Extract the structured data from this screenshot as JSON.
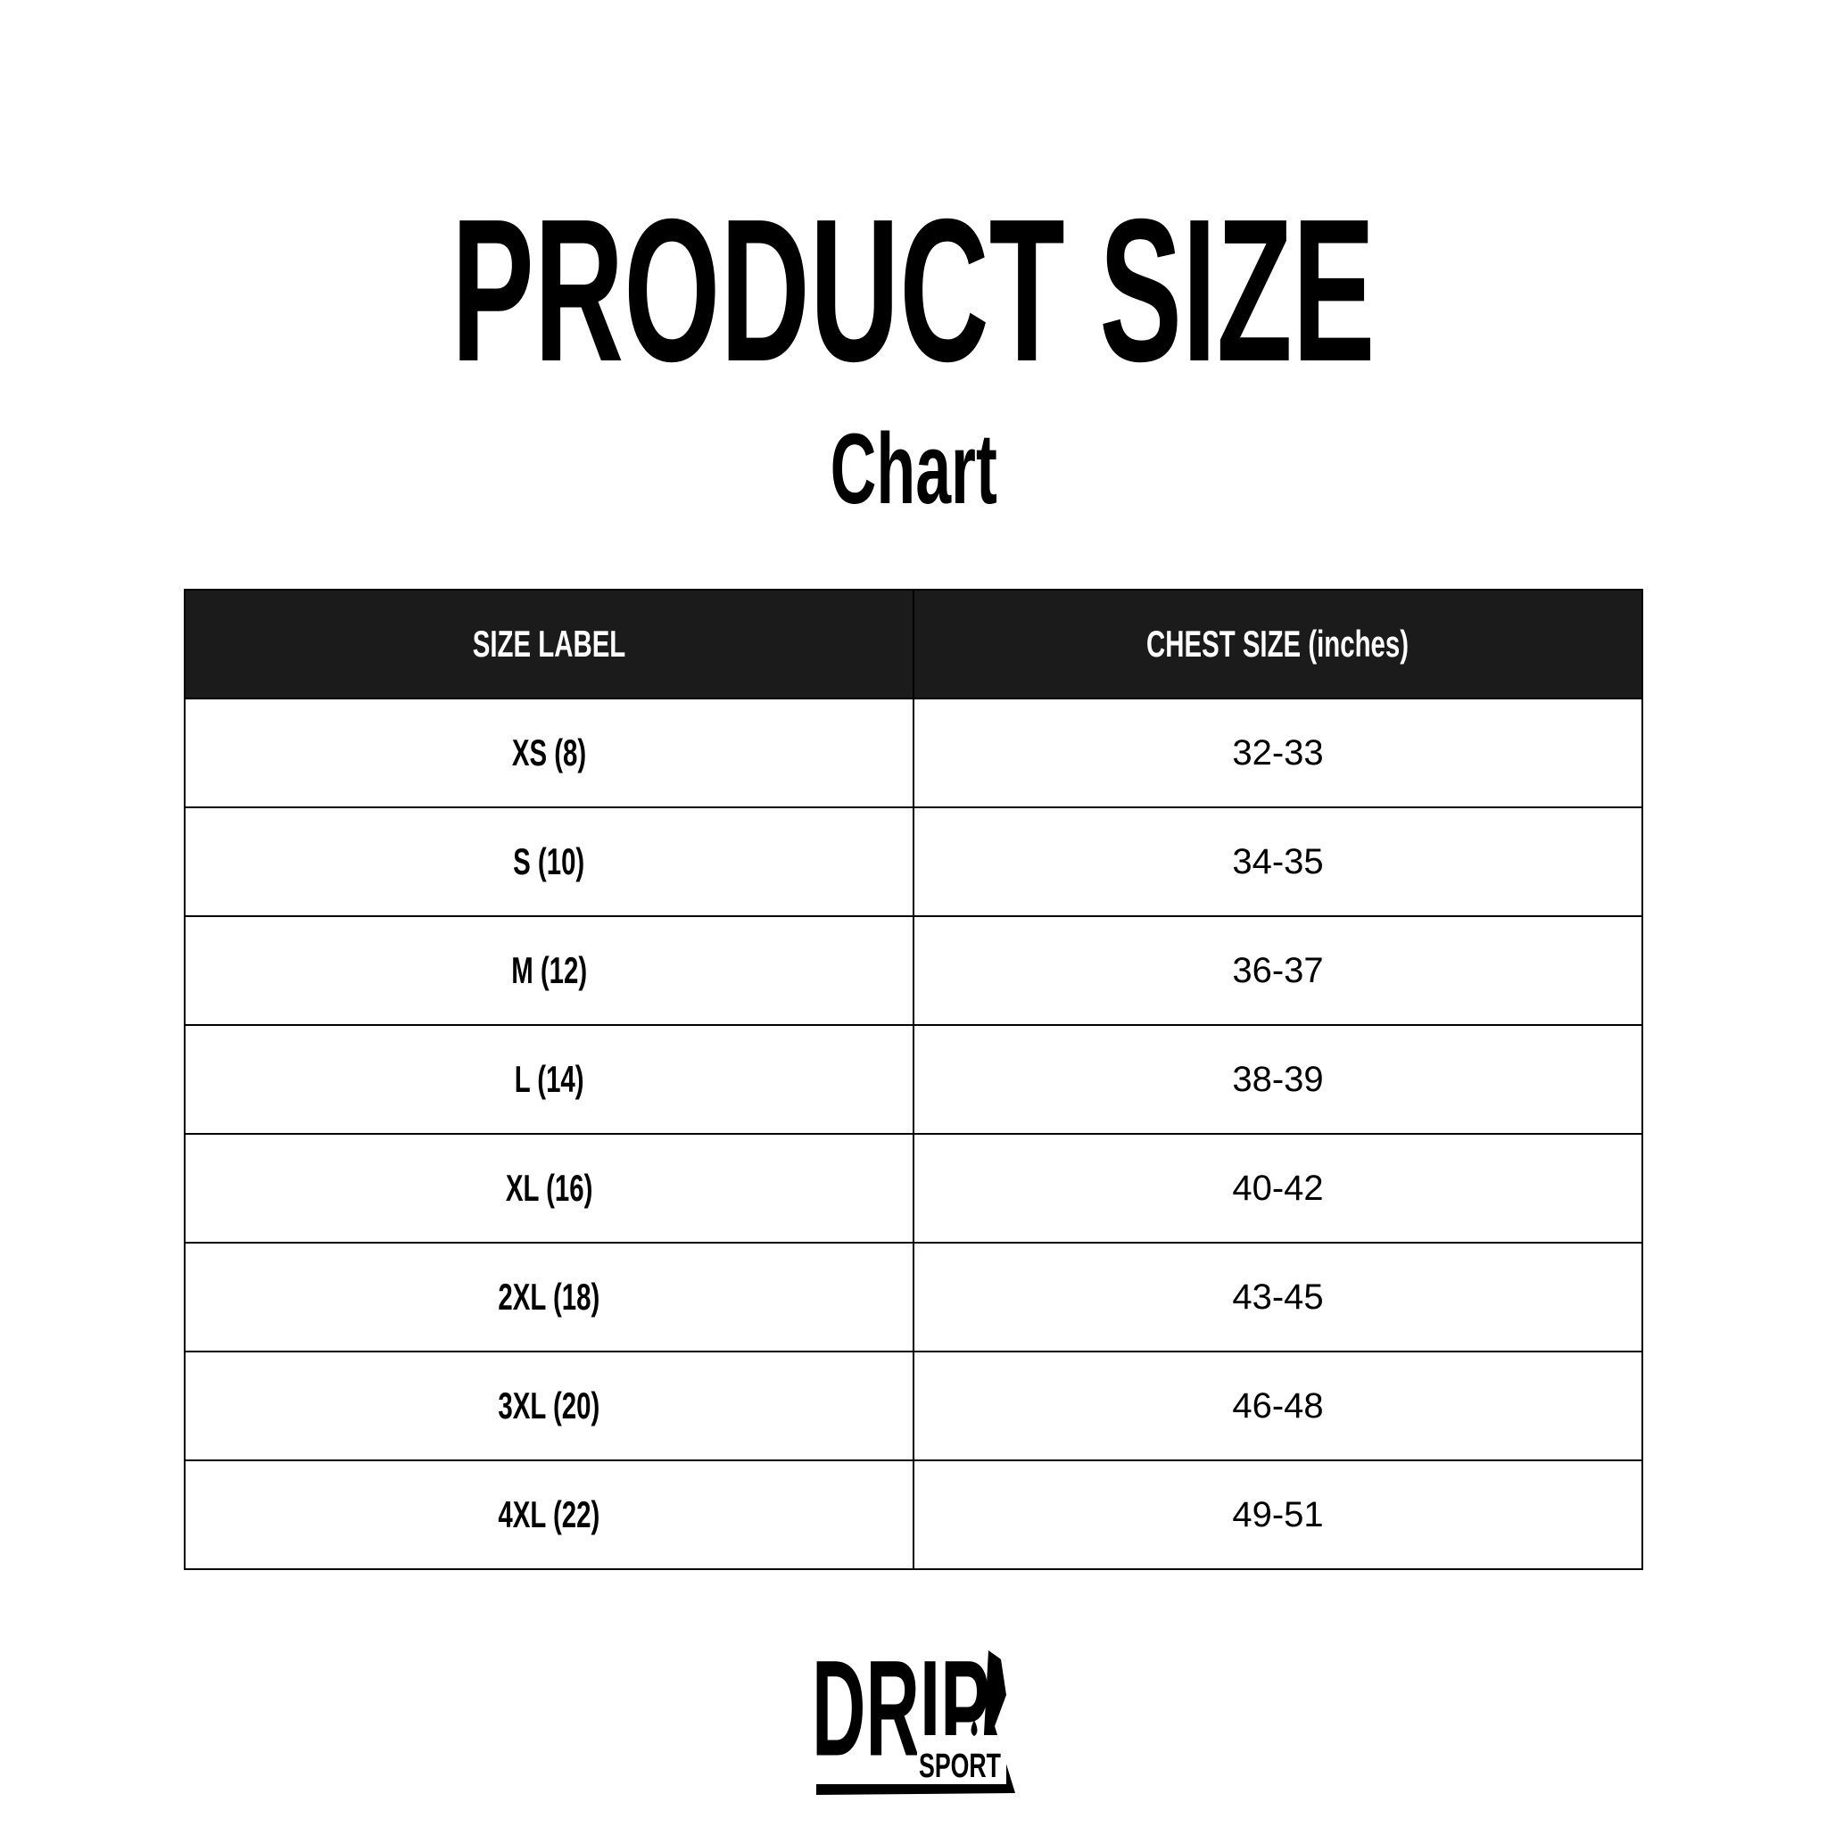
{
  "title": "PRODUCT SIZE",
  "subtitle": "Chart",
  "table": {
    "headers": [
      "SIZE LABEL",
      "CHEST SIZE (inches)"
    ],
    "rows": [
      {
        "size": "XS (8)",
        "chest": "32-33"
      },
      {
        "size": "S (10)",
        "chest": "34-35"
      },
      {
        "size": "M (12)",
        "chest": "36-37"
      },
      {
        "size": "L (14)",
        "chest": "38-39"
      },
      {
        "size": "XL (16)",
        "chest": "40-42"
      },
      {
        "size": "2XL (18)",
        "chest": "43-45"
      },
      {
        "size": "3XL (20)",
        "chest": "46-48"
      },
      {
        "size": "4XL (22)",
        "chest": "49-51"
      }
    ],
    "header_bg": "#1b1b1b"
  },
  "logo": {
    "main": "DRIP",
    "sub": "SPORT"
  }
}
